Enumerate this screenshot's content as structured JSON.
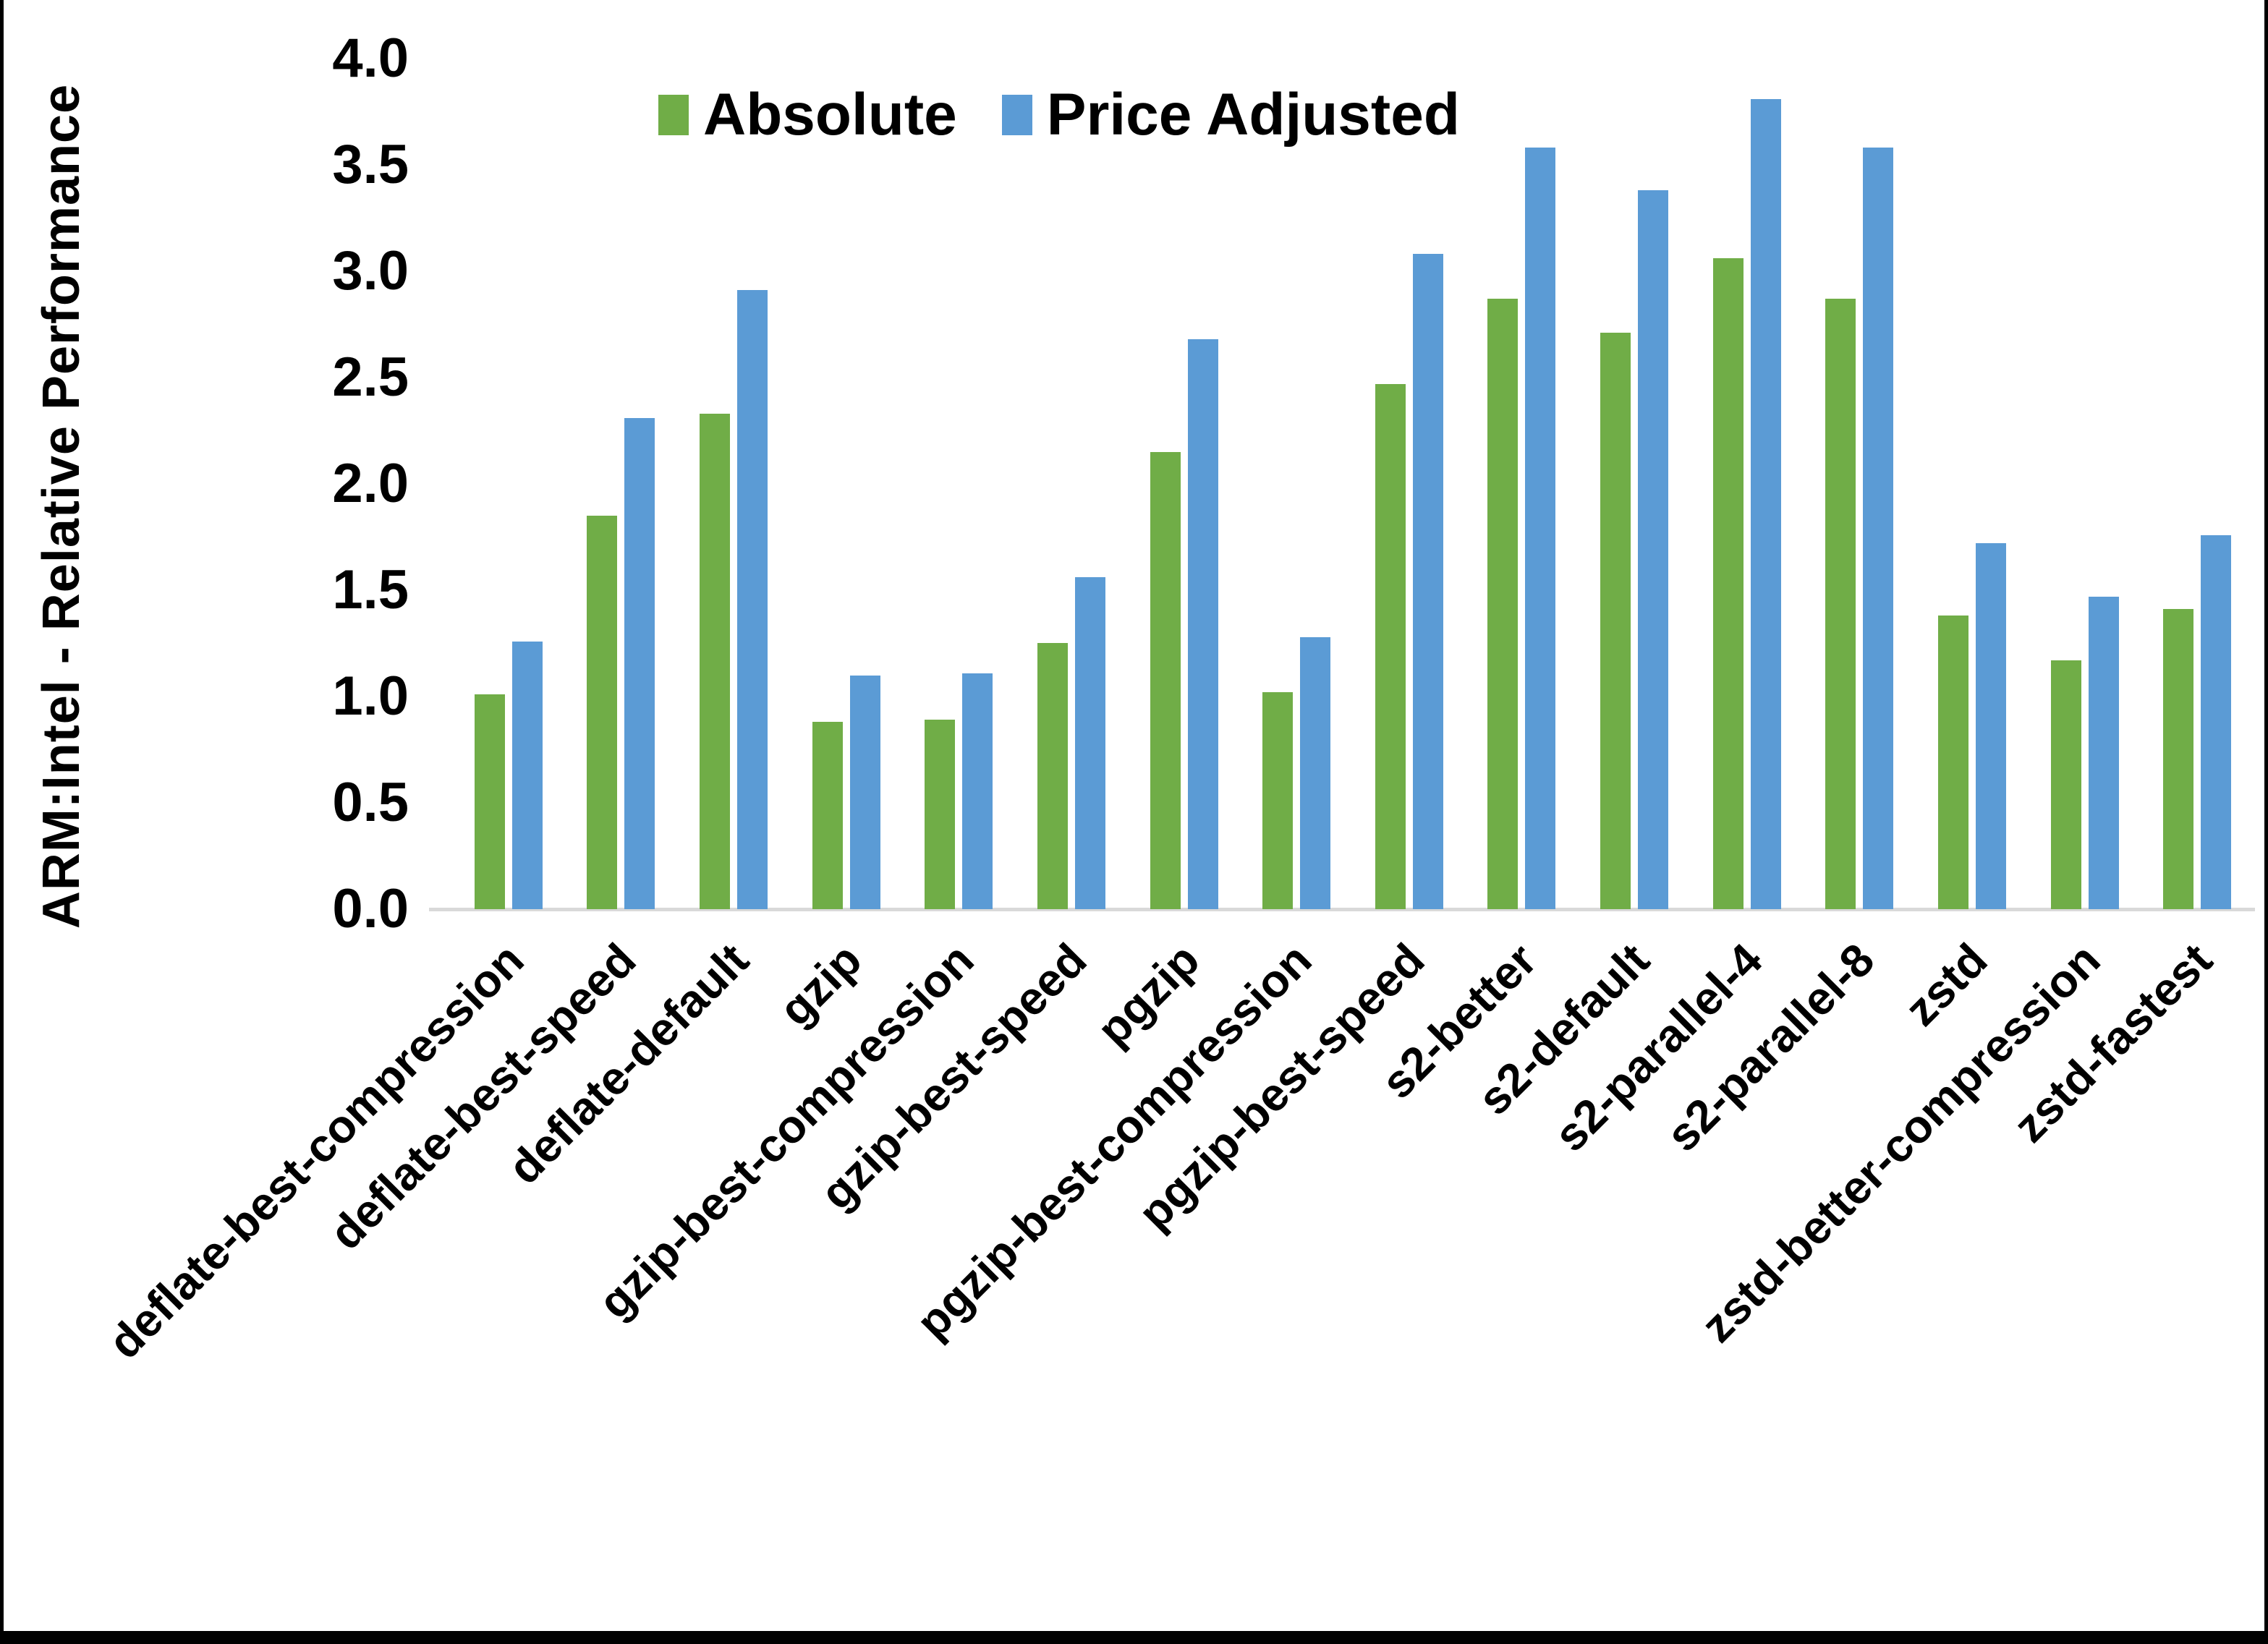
{
  "figure": {
    "background_color": "#FFFFFF",
    "border_color": "#000000"
  },
  "chart_data": {
    "type": "bar",
    "title": "",
    "xlabel": "",
    "ylabel": "ARM:Intel - Relative Performance",
    "ylim": [
      0,
      4
    ],
    "ytick_labels": [
      "0.0",
      "0.5",
      "1.0",
      "1.5",
      "2.0",
      "2.5",
      "3.0",
      "3.5",
      "4.0"
    ],
    "grid": false,
    "legend_position": "top-center",
    "axis_line_color": "#D9D9D9",
    "categories": [
      "deflate-best-compression",
      "deflate-best-speed",
      "deflate-default",
      "gzip",
      "gzip-best-compression",
      "gzip-best-speed",
      "pgzip",
      "pgzip-best-compression",
      "pgzip-best-speed",
      "s2-better",
      "s2-default",
      "s2-parallel-4",
      "s2-parallel-8",
      "zstd",
      "zstd-better-compression",
      "zstd-fastest"
    ],
    "series": [
      {
        "name": "Absolute",
        "color": "#70AD47",
        "values": [
          1.01,
          1.85,
          2.33,
          0.88,
          0.89,
          1.25,
          2.15,
          1.02,
          2.47,
          2.87,
          2.71,
          3.06,
          2.87,
          1.38,
          1.17,
          1.41
        ]
      },
      {
        "name": "Price Adjusted",
        "color": "#5B9BD5",
        "values": [
          1.26,
          2.31,
          2.91,
          1.1,
          1.11,
          1.56,
          2.68,
          1.28,
          3.08,
          3.58,
          3.38,
          3.81,
          3.58,
          1.72,
          1.47,
          1.76
        ]
      }
    ]
  }
}
